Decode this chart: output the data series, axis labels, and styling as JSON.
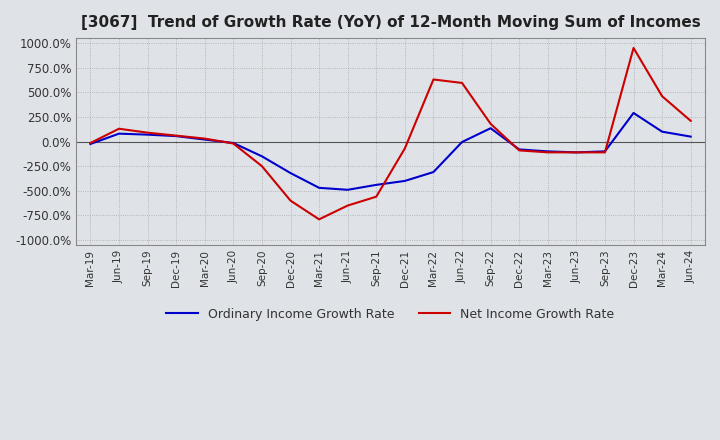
{
  "title": "[3067]  Trend of Growth Rate (YoY) of 12-Month Moving Sum of Incomes",
  "ylim": [
    -1050,
    1050
  ],
  "yticks": [
    -1000,
    -750,
    -500,
    -250,
    0,
    250,
    500,
    750,
    1000
  ],
  "ytick_labels": [
    "-1000.0%",
    "-750.0%",
    "-500.0%",
    "-250.0%",
    "0.0%",
    "250.0%",
    "500.0%",
    "750.0%",
    "1000.0%"
  ],
  "background_color": "#dfe3e8",
  "plot_bg_color": "#dfe3e8",
  "grid_color": "#999999",
  "ordinary_color": "#0000cc",
  "net_color": "#cc0000",
  "legend_ordinary": "Ordinary Income Growth Rate",
  "legend_net": "Net Income Growth Rate",
  "x_labels": [
    "Mar-19",
    "Jun-19",
    "Sep-19",
    "Dec-19",
    "Mar-20",
    "Jun-20",
    "Sep-20",
    "Dec-20",
    "Mar-21",
    "Jun-21",
    "Sep-21",
    "Dec-21",
    "Mar-22",
    "Jun-22",
    "Sep-22",
    "Dec-22",
    "Mar-23",
    "Jun-23",
    "Sep-23",
    "Dec-23",
    "Mar-24",
    "Jun-24"
  ],
  "ordinary_data": [
    -25,
    80,
    70,
    55,
    20,
    -15,
    -150,
    -320,
    -470,
    -490,
    -440,
    -400,
    -310,
    -5,
    135,
    -80,
    -100,
    -110,
    -100,
    290,
    100,
    50
  ],
  "net_data": [
    -15,
    130,
    90,
    60,
    30,
    -20,
    -250,
    -600,
    -790,
    -650,
    -560,
    -70,
    630,
    595,
    180,
    -90,
    -110,
    -110,
    -110,
    950,
    460,
    210
  ]
}
